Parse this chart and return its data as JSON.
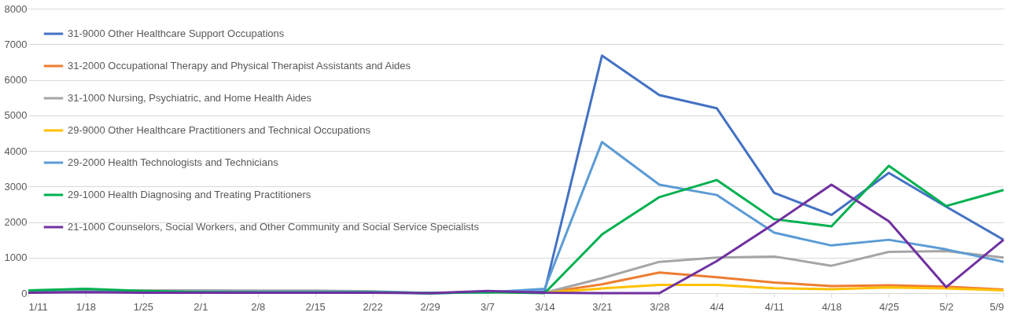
{
  "chart_data": {
    "type": "line",
    "categories": [
      "1/11",
      "1/18",
      "1/25",
      "2/1",
      "2/8",
      "2/15",
      "2/22",
      "2/29",
      "3/7",
      "3/14",
      "3/21",
      "3/28",
      "4/4",
      "4/11",
      "4/18",
      "4/25",
      "5/2",
      "5/9"
    ],
    "ylim": [
      0,
      8000
    ],
    "yticks": [
      0,
      1000,
      2000,
      3000,
      4000,
      5000,
      6000,
      7000,
      8000
    ],
    "grid": "y",
    "legend": "top left",
    "marker": "none",
    "line_style": "solid",
    "series": [
      {
        "name": "31-9000 Other Healthcare Support Occupations",
        "color": "#4472c4",
        "values": [
          30,
          50,
          40,
          30,
          30,
          30,
          30,
          0,
          30,
          50,
          6680,
          5570,
          5200,
          2820,
          2200,
          3380,
          2430,
          1500
        ]
      },
      {
        "name": "31-2000 Occupational Therapy and Physical Therapist Assistants and Aides",
        "color": "#ed7d31",
        "values": [
          null,
          null,
          null,
          null,
          null,
          null,
          null,
          null,
          null,
          10,
          250,
          580,
          450,
          300,
          200,
          220,
          180,
          100
        ]
      },
      {
        "name": "31-1000 Nursing, Psychiatric, and Home Health Aides",
        "color": "#a5a5a5",
        "values": [
          50,
          70,
          80,
          80,
          70,
          70,
          50,
          0,
          30,
          10,
          420,
          880,
          1000,
          1030,
          770,
          1160,
          1180,
          1000
        ]
      },
      {
        "name": "29-9000 Other Healthcare Practitioners and Technical Occupations",
        "color": "#ffc000",
        "values": [
          null,
          null,
          null,
          null,
          null,
          null,
          null,
          null,
          null,
          10,
          130,
          230,
          230,
          140,
          110,
          160,
          130,
          80
        ]
      },
      {
        "name": "29-2000 Health Technologists and Technicians",
        "color": "#5b9bd5",
        "values": [
          30,
          40,
          40,
          40,
          40,
          40,
          40,
          0,
          20,
          120,
          4250,
          3050,
          2760,
          1700,
          1340,
          1500,
          1230,
          880
        ]
      },
      {
        "name": "29-1000 Health Diagnosing and Treating Practitioners",
        "color": "#00b050",
        "values": [
          80,
          120,
          60,
          30,
          20,
          20,
          20,
          0,
          30,
          0,
          1650,
          2700,
          3180,
          2080,
          1880,
          3580,
          2450,
          2900
        ]
      },
      {
        "name": "21-1000 Counselors, Social Workers, and Other Community and Social Service Specialists",
        "color": "#7030a0",
        "values": [
          10,
          30,
          10,
          10,
          10,
          10,
          10,
          0,
          60,
          10,
          0,
          0,
          900,
          1950,
          3050,
          2020,
          170,
          1500
        ]
      }
    ]
  }
}
